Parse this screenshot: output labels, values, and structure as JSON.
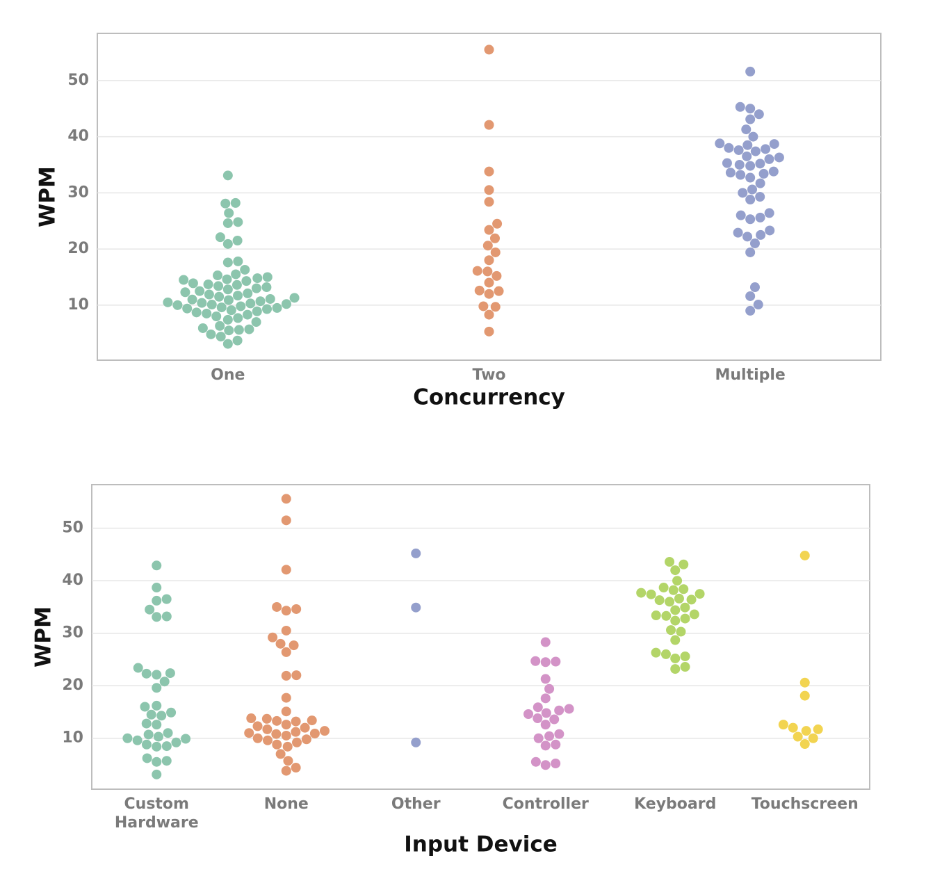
{
  "chart_data": [
    {
      "type": "swarm",
      "ylabel": "WPM",
      "xlabel": "Concurrency",
      "categories": [
        "One",
        "Two",
        "Multiple"
      ],
      "colors": [
        "#8cc5ad",
        "#e29871",
        "#949fcc"
      ],
      "values": [
        [
          33.1,
          28.1,
          28.2,
          26.4,
          24.8,
          24.6,
          22.1,
          21.5,
          20.9,
          17.8,
          17.6,
          16.3,
          15.5,
          15.3,
          15.0,
          14.8,
          14.6,
          14.5,
          14.3,
          13.9,
          13.7,
          13.6,
          13.4,
          13.2,
          13.0,
          12.8,
          12.5,
          12.3,
          12.1,
          11.9,
          11.7,
          11.5,
          11.3,
          11.1,
          11.0,
          10.9,
          10.7,
          10.5,
          10.4,
          10.3,
          10.2,
          10.1,
          10.0,
          9.8,
          9.6,
          9.5,
          9.4,
          9.3,
          9.1,
          8.9,
          8.7,
          8.5,
          8.3,
          8.0,
          7.7,
          7.4,
          7.0,
          6.3,
          5.9,
          5.7,
          5.6,
          5.5,
          4.8,
          4.4,
          3.7,
          3.1
        ],
        [
          55.5,
          42.1,
          33.8,
          30.5,
          28.4,
          24.5,
          23.4,
          21.9,
          20.6,
          19.4,
          18.0,
          16.1,
          16.0,
          15.2,
          14.0,
          12.6,
          12.5,
          12.0,
          9.8,
          9.7,
          8.3,
          5.3
        ],
        [
          51.6,
          45.3,
          45.0,
          44.0,
          43.1,
          41.3,
          40.0,
          38.8,
          38.7,
          38.5,
          38.0,
          37.8,
          37.6,
          37.4,
          36.5,
          36.3,
          36.0,
          35.3,
          35.2,
          35.0,
          34.8,
          33.8,
          33.6,
          33.4,
          33.2,
          32.7,
          31.7,
          30.6,
          30.0,
          29.3,
          28.8,
          26.4,
          26.0,
          25.6,
          25.3,
          23.3,
          22.9,
          22.5,
          22.2,
          21.0,
          19.4,
          13.2,
          11.6,
          10.1,
          9.0
        ]
      ],
      "ylim": [
        0.2,
        58.4
      ],
      "yticks": [
        10,
        20,
        30,
        40,
        50
      ],
      "grid": true
    },
    {
      "type": "swarm",
      "ylabel": "WPM",
      "xlabel": "Input Device",
      "categories": [
        "Custom Hardware",
        "None",
        "Other",
        "Controller",
        "Keyboard",
        "Touchscreen"
      ],
      "colors": [
        "#8cc5ad",
        "#e29871",
        "#949fcc",
        "#d393c7",
        "#b3d568",
        "#f2d451"
      ],
      "values": [
        [
          42.9,
          38.7,
          36.5,
          36.2,
          34.5,
          33.2,
          33.1,
          23.4,
          22.4,
          22.3,
          22.1,
          20.8,
          19.6,
          16.2,
          16.0,
          14.9,
          14.5,
          14.3,
          12.8,
          12.6,
          11.0,
          10.7,
          10.3,
          10.0,
          9.9,
          9.6,
          9.2,
          8.8,
          8.5,
          8.4,
          6.2,
          5.7,
          5.5,
          3.1
        ],
        [
          55.6,
          51.5,
          42.1,
          35.0,
          34.6,
          34.3,
          30.5,
          29.2,
          28.0,
          27.7,
          26.4,
          22.0,
          21.9,
          17.7,
          15.1,
          13.8,
          13.7,
          13.4,
          13.3,
          13.2,
          12.6,
          12.3,
          12.0,
          11.7,
          11.4,
          11.2,
          11.0,
          10.9,
          10.8,
          10.5,
          10.0,
          9.8,
          9.6,
          9.2,
          8.8,
          8.4,
          7.0,
          5.7,
          4.4,
          3.8
        ],
        [
          45.2,
          34.9,
          9.2
        ],
        [
          28.3,
          24.7,
          24.6,
          24.5,
          21.3,
          19.4,
          17.6,
          15.9,
          15.6,
          15.3,
          14.8,
          14.6,
          13.8,
          13.6,
          12.6,
          10.8,
          10.4,
          10.0,
          8.8,
          8.6,
          5.5,
          5.2,
          4.9
        ],
        [
          43.6,
          43.1,
          42.0,
          40.0,
          38.7,
          38.4,
          38.2,
          37.7,
          37.5,
          37.4,
          36.6,
          36.4,
          36.3,
          36.0,
          34.9,
          34.4,
          33.6,
          33.4,
          33.3,
          32.8,
          32.4,
          30.6,
          30.3,
          28.7,
          26.3,
          26.0,
          25.6,
          25.2,
          23.6,
          23.2
        ],
        [
          44.8,
          20.6,
          18.1,
          12.6,
          12.0,
          11.7,
          11.4,
          10.3,
          10.0,
          8.9
        ]
      ],
      "ylim": [
        0.3,
        58.3
      ],
      "yticks": [
        10,
        20,
        30,
        40,
        50
      ],
      "grid": true
    }
  ]
}
